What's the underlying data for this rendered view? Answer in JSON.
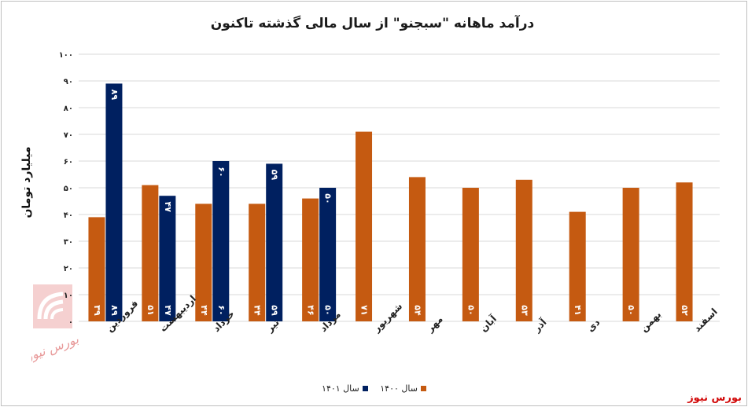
{
  "title": "درآمد ماهانه \"سبجنو\" از سال مالی گذشته تاکنون",
  "brand": "بورس نیوز",
  "colors": {
    "series_1400": "#C55A11",
    "series_1401": "#002060",
    "grid": "#d9d9d9"
  },
  "chart_data": {
    "type": "bar",
    "ylabel": "میلیارد تومان",
    "ylim": [
      0,
      100
    ],
    "yticks": [
      "۰",
      "۱۰",
      "۲۰",
      "۳۰",
      "۴۰",
      "۵۰",
      "۶۰",
      "۷۰",
      "۸۰",
      "۹۰",
      "۱۰۰"
    ],
    "grid": true,
    "legend_position": "bottom",
    "categories": [
      "فروردین",
      "اردیبهشت",
      "خرداد",
      "تیر",
      "مرداد",
      "شهریور",
      "مهر",
      "آبان",
      "آذر",
      "دی",
      "بهمن",
      "اسفند"
    ],
    "series": [
      {
        "name": "سال ۱۴۰۰",
        "values": [
          39,
          51,
          44,
          44,
          46,
          71,
          54,
          50,
          53,
          41,
          50,
          52
        ],
        "labels": [
          "۳۹",
          "۵۱",
          "۴۴",
          "۴۴",
          "۴۶",
          "۷۱",
          "۵۴",
          "۵۰",
          "۵۳",
          "۴۱",
          "۵۰",
          "۵۲"
        ]
      },
      {
        "name": "سال ۱۴۰۱",
        "values": [
          89,
          47,
          60,
          59,
          50,
          null,
          null,
          null,
          null,
          null,
          null,
          null
        ],
        "labels": [
          "۸۹",
          "۴۷",
          "۶۰",
          "۵۹",
          "۵۰",
          null,
          null,
          null,
          null,
          null,
          null,
          null
        ]
      }
    ]
  }
}
